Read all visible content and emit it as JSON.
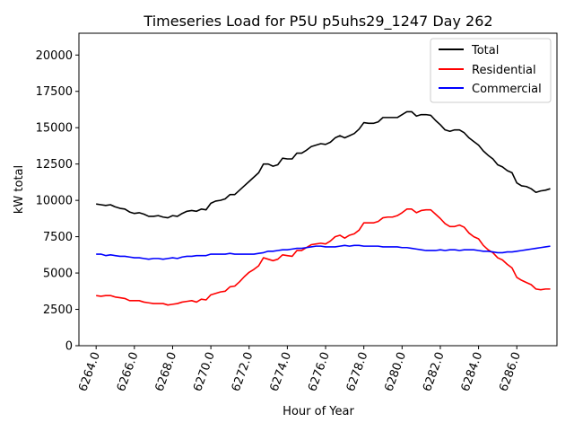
{
  "chart_data": {
    "type": "line",
    "title": "Timeseries Load for P5U p5uhs29_1247  Day 262",
    "xlabel": "Hour of Year",
    "ylabel": "kW total",
    "xlim": [
      6263.1,
      6288.1
    ],
    "ylim": [
      0,
      21500
    ],
    "x_ticks": [
      "6264.0",
      "6266.0",
      "6268.0",
      "6270.0",
      "6272.0",
      "6274.0",
      "6276.0",
      "6278.0",
      "6280.0",
      "6282.0",
      "6284.0",
      "6286.0"
    ],
    "x_tick_values": [
      6264,
      6266,
      6268,
      6270,
      6272,
      6274,
      6276,
      6278,
      6280,
      6282,
      6284,
      6286
    ],
    "y_ticks": [
      "0",
      "2500",
      "5000",
      "7500",
      "10000",
      "12500",
      "15000",
      "17500",
      "20000"
    ],
    "y_tick_values": [
      0,
      2500,
      5000,
      7500,
      10000,
      12500,
      15000,
      17500,
      20000
    ],
    "grid": false,
    "legend_position": "top-right",
    "x_start": 6264.0,
    "x_step": 0.25,
    "series": [
      {
        "name": "Total",
        "color": "#000000",
        "values": [
          9750,
          9700,
          9650,
          9700,
          9550,
          9450,
          9400,
          9200,
          9100,
          9150,
          9050,
          8900,
          8900,
          8950,
          8850,
          8800,
          8950,
          8900,
          9100,
          9250,
          9300,
          9250,
          9400,
          9350,
          9800,
          9950,
          10000,
          10100,
          10400,
          10400,
          10700,
          11000,
          11300,
          11600,
          11900,
          12500,
          12500,
          12350,
          12450,
          12900,
          12850,
          12850,
          13250,
          13250,
          13450,
          13700,
          13800,
          13900,
          13850,
          14000,
          14300,
          14450,
          14300,
          14450,
          14600,
          14900,
          15350,
          15300,
          15300,
          15400,
          15700,
          15700,
          15700,
          15700,
          15900,
          16100,
          16100,
          15800,
          15900,
          15900,
          15850,
          15500,
          15200,
          14850,
          14750,
          14850,
          14850,
          14650,
          14300,
          14050,
          13800,
          13400,
          13100,
          12850,
          12450,
          12300,
          12050,
          11900,
          11200,
          11000,
          10950,
          10800,
          10550,
          10650,
          10700,
          10800
        ]
      },
      {
        "name": "Residential",
        "color": "#ff0000",
        "values": [
          3450,
          3400,
          3450,
          3450,
          3350,
          3300,
          3250,
          3100,
          3100,
          3100,
          3000,
          2950,
          2900,
          2900,
          2900,
          2800,
          2850,
          2900,
          3000,
          3050,
          3100,
          3000,
          3200,
          3150,
          3500,
          3600,
          3700,
          3750,
          4050,
          4100,
          4400,
          4750,
          5050,
          5250,
          5500,
          6050,
          5950,
          5850,
          5950,
          6250,
          6200,
          6150,
          6550,
          6550,
          6750,
          6950,
          7000,
          7050,
          7000,
          7200,
          7500,
          7600,
          7400,
          7600,
          7700,
          7950,
          8450,
          8450,
          8450,
          8550,
          8800,
          8850,
          8850,
          8950,
          9150,
          9400,
          9400,
          9150,
          9300,
          9350,
          9350,
          9050,
          8750,
          8400,
          8200,
          8200,
          8300,
          8150,
          7750,
          7500,
          7350,
          6900,
          6600,
          6400,
          6050,
          5900,
          5600,
          5350,
          4700,
          4500,
          4350,
          4200,
          3900,
          3850,
          3900,
          3900
        ]
      },
      {
        "name": "Commercial",
        "color": "#0000ff",
        "values": [
          6300,
          6300,
          6200,
          6250,
          6200,
          6150,
          6150,
          6100,
          6050,
          6050,
          6000,
          5950,
          6000,
          6000,
          5950,
          6000,
          6050,
          6000,
          6100,
          6150,
          6150,
          6200,
          6200,
          6200,
          6300,
          6300,
          6300,
          6300,
          6350,
          6300,
          6300,
          6300,
          6300,
          6300,
          6350,
          6400,
          6500,
          6500,
          6550,
          6600,
          6600,
          6650,
          6700,
          6700,
          6750,
          6800,
          6850,
          6850,
          6800,
          6800,
          6800,
          6850,
          6900,
          6850,
          6900,
          6900,
          6850,
          6850,
          6850,
          6850,
          6800,
          6800,
          6800,
          6800,
          6750,
          6750,
          6700,
          6650,
          6600,
          6550,
          6550,
          6550,
          6600,
          6550,
          6600,
          6600,
          6550,
          6600,
          6600,
          6600,
          6550,
          6500,
          6500,
          6450,
          6400,
          6400,
          6450,
          6450,
          6500,
          6550,
          6600,
          6650,
          6700,
          6750,
          6800,
          6850
        ]
      }
    ]
  }
}
